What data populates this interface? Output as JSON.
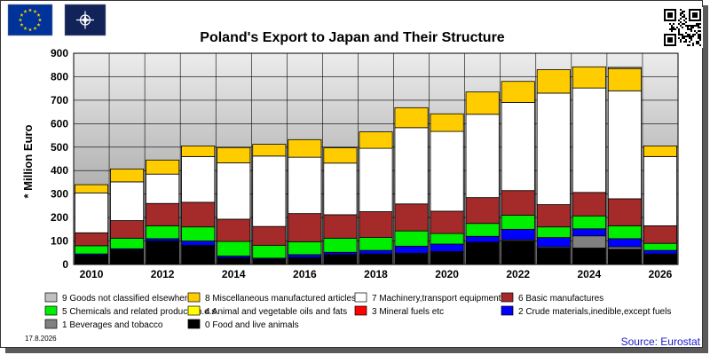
{
  "title": "Poland's Export to Japan and Their Structure",
  "ylabel": "* Million Euro",
  "date": "17.8.2026",
  "source": "Source: Eurostat",
  "logos": [
    {
      "name": "eu-flag-icon"
    },
    {
      "name": "nato-flag-icon"
    },
    {
      "name": "qr-code-icon"
    }
  ],
  "chart_data": {
    "type": "bar",
    "stacked": true,
    "ylim": [
      0,
      900
    ],
    "yticks": [
      0,
      100,
      200,
      300,
      400,
      500,
      600,
      700,
      800,
      900
    ],
    "categories": [
      "2010",
      "2011",
      "2012",
      "2013",
      "2014",
      "2015",
      "2016",
      "2017",
      "2018",
      "2019",
      "2020",
      "2021",
      "2022",
      "2023",
      "2024",
      "2025",
      "2026"
    ],
    "xtick_labels": [
      "2010",
      "",
      "2012",
      "",
      "2014",
      "",
      "2016",
      "",
      "2018",
      "",
      "2020",
      "",
      "2022",
      "",
      "2024",
      "",
      "2026"
    ],
    "grid": true,
    "legend_position": "bottom",
    "series": [
      {
        "name": "0 Food and live animals",
        "color": "#000000",
        "values": [
          40,
          62,
          100,
          82,
          28,
          22,
          30,
          42,
          45,
          48,
          55,
          95,
          100,
          70,
          70,
          65,
          45
        ]
      },
      {
        "name": "1 Beverages and tobacco",
        "color": "#808080",
        "values": [
          0,
          0,
          0,
          0,
          0,
          0,
          0,
          0,
          0,
          0,
          0,
          0,
          5,
          5,
          52,
          10,
          0
        ]
      },
      {
        "name": "2 Crude materials,inedible,except fuels",
        "color": "#0000ff",
        "values": [
          5,
          5,
          10,
          18,
          8,
          5,
          12,
          10,
          15,
          30,
          32,
          25,
          45,
          40,
          30,
          35,
          15
        ]
      },
      {
        "name": "3 Mineral fuels etc",
        "color": "#ff0000",
        "values": [
          0,
          0,
          0,
          0,
          0,
          0,
          0,
          0,
          0,
          0,
          0,
          0,
          0,
          0,
          0,
          0,
          0
        ]
      },
      {
        "name": "4 Animal and vegetable oils and fats",
        "color": "#ffff00",
        "values": [
          0,
          0,
          0,
          0,
          0,
          0,
          0,
          0,
          0,
          0,
          0,
          0,
          0,
          0,
          0,
          0,
          0
        ]
      },
      {
        "name": "5 Chemicals and related products,n.e.s.",
        "color": "#00ee00",
        "values": [
          35,
          45,
          55,
          60,
          62,
          55,
          55,
          60,
          55,
          65,
          45,
          55,
          60,
          45,
          55,
          55,
          30
        ]
      },
      {
        "name": "6 Basic manufactures",
        "color": "#a52a2a",
        "values": [
          55,
          75,
          95,
          105,
          95,
          80,
          120,
          100,
          110,
          115,
          95,
          110,
          105,
          95,
          100,
          115,
          75
        ]
      },
      {
        "name": "7 Machinery,transport equipment",
        "color": "#ffffff",
        "values": [
          170,
          165,
          125,
          195,
          240,
          300,
          240,
          220,
          270,
          325,
          340,
          355,
          375,
          475,
          445,
          460,
          295
        ]
      },
      {
        "name": "8 Miscellaneous manufactured articles",
        "color": "#ffcc00",
        "values": [
          35,
          55,
          60,
          45,
          65,
          50,
          75,
          65,
          70,
          85,
          75,
          95,
          90,
          100,
          90,
          95,
          45
        ]
      },
      {
        "name": "9 Goods not classified elsewhere",
        "color": "#c0c0c0",
        "values": [
          0,
          0,
          0,
          0,
          0,
          0,
          0,
          0,
          0,
          0,
          0,
          0,
          0,
          0,
          0,
          5,
          0
        ]
      }
    ],
    "legend_order": [
      9,
      8,
      7,
      6,
      5,
      4,
      3,
      2,
      1,
      0
    ]
  }
}
